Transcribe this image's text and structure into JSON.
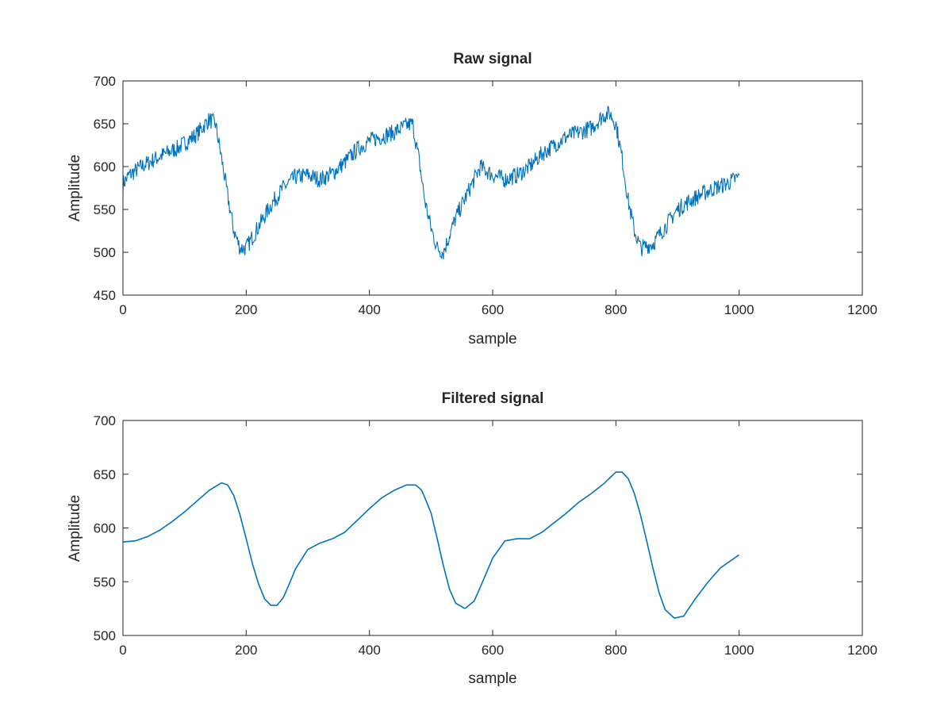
{
  "figure": {
    "background": "#ffffff",
    "line_color": "#0072bd",
    "axis_color": "#262626"
  },
  "chart_data": [
    {
      "type": "line",
      "title": "Raw signal",
      "xlabel": "sample",
      "ylabel": "Amplitude",
      "xlim": [
        0,
        1200
      ],
      "ylim": [
        450,
        700
      ],
      "xticks": [
        0,
        200,
        400,
        600,
        800,
        1000,
        1200
      ],
      "yticks": [
        450,
        500,
        550,
        600,
        650,
        700
      ],
      "grid": false,
      "noise_amplitude": 10,
      "series": [
        {
          "x": [
            0,
            10,
            30,
            60,
            90,
            120,
            140,
            150,
            160,
            170,
            180,
            190,
            200,
            220,
            240,
            260,
            280,
            300,
            320,
            340,
            360,
            380,
            400,
            420,
            440,
            460,
            470,
            480,
            490,
            500,
            510,
            520,
            540,
            560,
            580,
            600,
            620,
            640,
            660,
            680,
            700,
            720,
            740,
            760,
            780,
            790,
            800,
            810,
            820,
            830,
            840,
            860,
            880,
            900,
            920,
            940,
            960,
            980,
            1000
          ],
          "y": [
            580,
            590,
            600,
            612,
            622,
            638,
            655,
            650,
            610,
            565,
            525,
            505,
            505,
            530,
            555,
            575,
            588,
            590,
            585,
            592,
            605,
            620,
            630,
            635,
            640,
            648,
            650,
            610,
            560,
            528,
            505,
            500,
            540,
            570,
            600,
            590,
            585,
            590,
            600,
            615,
            625,
            635,
            640,
            645,
            660,
            662,
            650,
            610,
            560,
            525,
            505,
            510,
            530,
            550,
            560,
            568,
            575,
            580,
            588
          ]
        }
      ]
    },
    {
      "type": "line",
      "title": "Filtered signal",
      "xlabel": "sample",
      "ylabel": "Amplitude",
      "xlim": [
        0,
        1200
      ],
      "ylim": [
        500,
        700
      ],
      "xticks": [
        0,
        200,
        400,
        600,
        800,
        1000,
        1200
      ],
      "yticks": [
        500,
        550,
        600,
        650,
        700
      ],
      "grid": false,
      "series": [
        {
          "x": [
            0,
            20,
            40,
            60,
            80,
            100,
            120,
            140,
            160,
            170,
            180,
            190,
            200,
            210,
            220,
            230,
            240,
            250,
            260,
            270,
            280,
            300,
            320,
            340,
            360,
            380,
            400,
            420,
            440,
            460,
            475,
            485,
            500,
            510,
            520,
            530,
            540,
            555,
            570,
            580,
            600,
            620,
            640,
            660,
            680,
            700,
            720,
            740,
            760,
            780,
            800,
            810,
            820,
            830,
            840,
            850,
            860,
            870,
            880,
            895,
            910,
            930,
            950,
            970,
            1000
          ],
          "y": [
            587,
            588,
            592,
            598,
            606,
            615,
            625,
            635,
            642,
            640,
            630,
            612,
            590,
            567,
            548,
            534,
            528,
            528,
            535,
            548,
            562,
            580,
            586,
            590,
            596,
            607,
            618,
            628,
            635,
            640,
            640,
            635,
            614,
            590,
            565,
            543,
            530,
            525,
            532,
            545,
            572,
            588,
            590,
            590,
            596,
            605,
            614,
            624,
            632,
            641,
            652,
            652,
            646,
            632,
            612,
            588,
            563,
            540,
            524,
            516,
            518,
            535,
            550,
            563,
            575
          ]
        }
      ]
    }
  ]
}
